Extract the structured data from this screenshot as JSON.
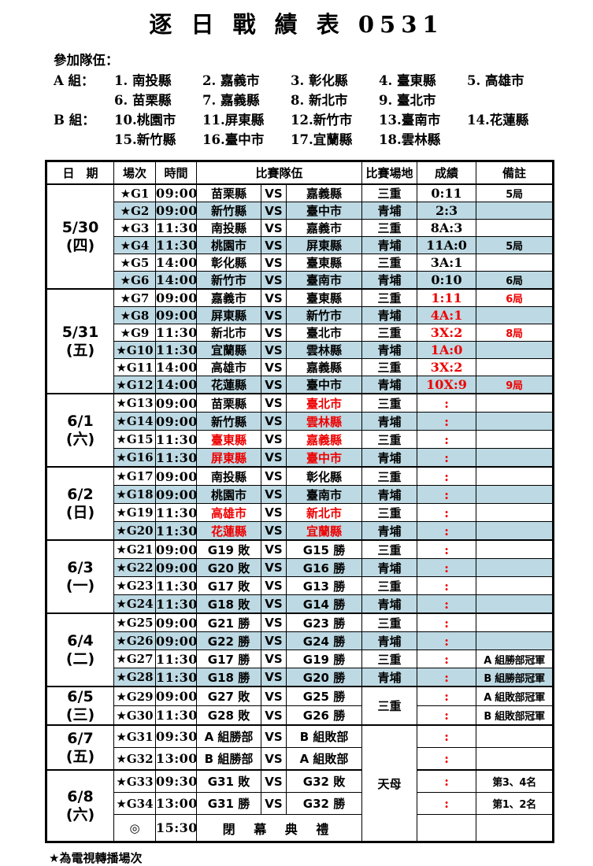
{
  "title": "逐 日 戰 績 表 0531",
  "participants": {
    "heading": "參加隊伍：",
    "groups": [
      {
        "label": "A 組：",
        "teams": [
          "1. 南投縣",
          "2. 嘉義市",
          "3. 彰化縣",
          "4. 臺東縣",
          "5. 高雄市",
          "6. 苗栗縣",
          "7. 嘉義縣",
          "8. 新北市",
          "9. 臺北市"
        ]
      },
      {
        "label": "B 組：",
        "teams": [
          "10.桃園市",
          "11.屏東縣",
          "12.新竹市",
          "13.臺南市",
          "14.花蓮縣",
          "15.新竹縣",
          "16.臺中市",
          "17.宜蘭縣",
          "18.雲林縣"
        ]
      }
    ]
  },
  "table": {
    "headers": [
      "日　期",
      "場次",
      "時間",
      "比賽隊伍",
      "比賽場地",
      "成績",
      "備註"
    ],
    "vs_label": "VS",
    "rows": [
      {
        "date": {
          "d": "5/30",
          "w": "(四)",
          "span": 6
        },
        "game": "★G1",
        "time": "09:00",
        "t1": "苗栗縣",
        "t2": "嘉義縣",
        "venue": "三重",
        "score": "0:11",
        "note": "5局"
      },
      {
        "game": "★G2",
        "time": "09:00",
        "t1": "新竹縣",
        "t2": "臺中市",
        "venue": "青埔",
        "score": "2:3",
        "blue": true
      },
      {
        "game": "★G3",
        "time": "11:30",
        "t1": "南投縣",
        "t2": "嘉義市",
        "venue": "三重",
        "score": "8A:3"
      },
      {
        "game": "★G4",
        "time": "11:30",
        "t1": "桃園市",
        "t2": "屏東縣",
        "venue": "青埔",
        "score": "11A:0",
        "note": "5局",
        "blue": true
      },
      {
        "game": "★G5",
        "time": "14:00",
        "t1": "彰化縣",
        "t2": "臺東縣",
        "venue": "三重",
        "score": "3A:1"
      },
      {
        "game": "★G6",
        "time": "14:00",
        "t1": "新竹市",
        "t2": "臺南市",
        "venue": "青埔",
        "score": "0:10",
        "note": "6局",
        "blue": true
      },
      {
        "date": {
          "d": "5/31",
          "w": "(五)",
          "span": 6
        },
        "section_start": true,
        "game": "★G7",
        "time": "09:00",
        "t1": "嘉義市",
        "t2": "臺東縣",
        "venue": "三重",
        "score": "1:11",
        "score_red": true,
        "note": "6局",
        "note_red": true
      },
      {
        "game": "★G8",
        "time": "09:00",
        "t1": "屏東縣",
        "t2": "新竹市",
        "venue": "青埔",
        "score": "4A:1",
        "score_red": true,
        "blue": true
      },
      {
        "game": "★G9",
        "time": "11:30",
        "t1": "新北市",
        "t2": "臺北市",
        "venue": "三重",
        "score": "3X:2",
        "score_red": true,
        "note": "8局",
        "note_red": true
      },
      {
        "game": "★G10",
        "time": "11:30",
        "t1": "宜蘭縣",
        "t2": "雲林縣",
        "venue": "青埔",
        "score": "1A:0",
        "score_red": true,
        "blue": true
      },
      {
        "game": "★G11",
        "time": "14:00",
        "t1": "高雄市",
        "t2": "嘉義縣",
        "venue": "三重",
        "score": "3X:2",
        "score_red": true
      },
      {
        "game": "★G12",
        "time": "14:00",
        "t1": "花蓮縣",
        "t2": "臺中市",
        "venue": "青埔",
        "score": "10X:9",
        "score_red": true,
        "note": "9局",
        "note_red": true,
        "blue": true
      },
      {
        "date": {
          "d": "6/1",
          "w": "(六)",
          "span": 4
        },
        "section_start": true,
        "game": "★G13",
        "time": "09:00",
        "t1": "苗栗縣",
        "t2": "臺北市",
        "t2_red": true,
        "venue": "三重",
        "score": ":",
        "score_red": true
      },
      {
        "game": "★G14",
        "time": "09:00",
        "t1": "新竹縣",
        "t2": "雲林縣",
        "t2_red": true,
        "venue": "青埔",
        "score": ":",
        "score_red": true,
        "blue": true
      },
      {
        "game": "★G15",
        "time": "11:30",
        "t1": "臺東縣",
        "t1_red": true,
        "t2": "嘉義縣",
        "t2_red": true,
        "venue": "三重",
        "score": ":",
        "score_red": true
      },
      {
        "game": "★G16",
        "time": "11:30",
        "t1": "屏東縣",
        "t1_red": true,
        "t2": "臺中市",
        "t2_red": true,
        "venue": "青埔",
        "score": ":",
        "score_red": true,
        "blue": true
      },
      {
        "date": {
          "d": "6/2",
          "w": "(日)",
          "span": 4
        },
        "section_start": true,
        "game": "★G17",
        "time": "09:00",
        "t1": "南投縣",
        "t2": "彰化縣",
        "venue": "三重",
        "score": ":",
        "score_red": true
      },
      {
        "game": "★G18",
        "time": "09:00",
        "t1": "桃園市",
        "t2": "臺南市",
        "venue": "青埔",
        "score": ":",
        "score_red": true,
        "blue": true
      },
      {
        "game": "★G19",
        "time": "11:30",
        "t1": "高雄市",
        "t1_red": true,
        "t2": "新北市",
        "t2_red": true,
        "venue": "三重",
        "score": ":",
        "score_red": true
      },
      {
        "game": "★G20",
        "time": "11:30",
        "t1": "花蓮縣",
        "t1_red": true,
        "t2": "宜蘭縣",
        "t2_red": true,
        "venue": "青埔",
        "score": ":",
        "score_red": true,
        "blue": true
      },
      {
        "date": {
          "d": "6/3",
          "w": "(一)",
          "span": 4
        },
        "section_start": true,
        "game": "★G21",
        "time": "09:00",
        "t1": "G19 敗",
        "t2": "G15 勝",
        "venue": "三重",
        "score": ":",
        "score_red": true
      },
      {
        "game": "★G22",
        "time": "09:00",
        "t1": "G20 敗",
        "t2": "G16 勝",
        "venue": "青埔",
        "score": ":",
        "score_red": true,
        "blue": true
      },
      {
        "game": "★G23",
        "time": "11:30",
        "t1": "G17 敗",
        "t2": "G13 勝",
        "venue": "三重",
        "score": ":",
        "score_red": true
      },
      {
        "game": "★G24",
        "time": "11:30",
        "t1": "G18 敗",
        "t2": "G14 勝",
        "venue": "青埔",
        "score": ":",
        "score_red": true,
        "blue": true
      },
      {
        "date": {
          "d": "6/4",
          "w": "(二)",
          "span": 4
        },
        "section_start": true,
        "game": "★G25",
        "time": "09:00",
        "t1": "G21 勝",
        "t2": "G23 勝",
        "venue": "三重",
        "score": ":",
        "score_red": true
      },
      {
        "game": "★G26",
        "time": "09:00",
        "t1": "G22 勝",
        "t2": "G24 勝",
        "venue": "青埔",
        "score": ":",
        "score_red": true,
        "blue": true
      },
      {
        "game": "★G27",
        "time": "11:30",
        "t1": "G17 勝",
        "t2": "G19 勝",
        "venue": "三重",
        "score": ":",
        "score_red": true,
        "note": "A 組勝部冠軍"
      },
      {
        "game": "★G28",
        "time": "11:30",
        "t1": "G18 勝",
        "t2": "G20 勝",
        "venue": "青埔",
        "score": ":",
        "score_red": true,
        "note": "B 組勝部冠軍",
        "blue": true
      },
      {
        "date": {
          "d": "6/5",
          "w": "(三)",
          "span": 2
        },
        "section_start": true,
        "game": "★G29",
        "time": "09:00",
        "t1": "G27 敗",
        "t2": "G25 勝",
        "venue": "三重",
        "venue_span": 2,
        "score": ":",
        "score_red": true,
        "note": "A 組敗部冠軍"
      },
      {
        "game": "★G30",
        "time": "11:30",
        "t1": "G28 敗",
        "t2": "G26 勝",
        "venue_skip": true,
        "score": ":",
        "score_red": true,
        "note": "B 組敗部冠軍"
      },
      {
        "date": {
          "d": "6/7",
          "w": "(五)",
          "span": 2
        },
        "section_start": true,
        "game": "★G31",
        "time": "09:30",
        "t1": "A 組勝部",
        "t2": "B 組敗部",
        "venue": "天母",
        "venue_span": 5,
        "score": ":",
        "score_red": true
      },
      {
        "game": "★G32",
        "time": "13:00",
        "t1": "B 組勝部",
        "t2": "A 組敗部",
        "venue_skip": true,
        "score": ":",
        "score_red": true
      },
      {
        "date": {
          "d": "6/8",
          "w": "(六)",
          "span": 3
        },
        "section_start": true,
        "game": "★G33",
        "time": "09:30",
        "t1": "G31 敗",
        "t2": "G32 敗",
        "venue_skip": true,
        "score": ":",
        "score_red": true,
        "note": "第3、4名"
      },
      {
        "game": "★G34",
        "time": "13:00",
        "t1": "G31 勝",
        "t2": "G32 勝",
        "venue_skip": true,
        "score": ":",
        "score_red": true,
        "note": "第1、2名"
      },
      {
        "game": "◎",
        "time": "15:30",
        "ceremony": "閉 幕 典 禮",
        "venue_skip": true,
        "score": "",
        "note": ""
      }
    ]
  },
  "footer": {
    "note": "★為電視轉播場次"
  },
  "colors": {
    "row_blue": "#BDD9E3",
    "highlight_red": "#EE0000",
    "border": "#000000"
  }
}
